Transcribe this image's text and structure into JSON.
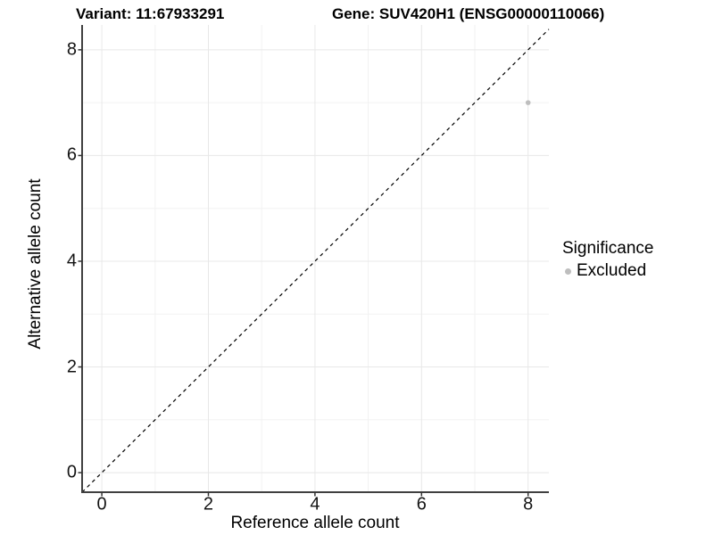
{
  "header": {
    "variant_title": "Variant: 11:67933291",
    "gene_title": "Gene: SUV420H1 (ENSG00000110066)"
  },
  "chart_data": {
    "type": "scatter",
    "xlabel": "Reference allele count",
    "ylabel": "Alternative allele count",
    "xticks": [
      0,
      2,
      4,
      6,
      8
    ],
    "yticks": [
      0,
      2,
      4,
      6,
      8
    ],
    "xminor": [
      1,
      3,
      5,
      7
    ],
    "yminor": [
      1,
      3,
      5,
      7
    ],
    "xlim": [
      -0.37,
      8.39
    ],
    "ylim": [
      -0.37,
      8.47
    ],
    "grid": true,
    "background": "#ffffff",
    "major_grid_color": "#e8e8e8",
    "minor_grid_color": "#f2f2f2",
    "axis_line_color": "#404040",
    "reference_line": {
      "name": "identity-line y=x",
      "style": "dashed",
      "color": "#000000"
    },
    "series": [
      {
        "name": "Excluded",
        "color": "#bebebe",
        "points": [
          {
            "x": 8,
            "y": 7
          }
        ]
      }
    ],
    "legend": {
      "title": "Significance",
      "position": "right",
      "entries": [
        {
          "label": "Excluded",
          "color": "#bebebe",
          "marker": "circle"
        }
      ]
    }
  }
}
